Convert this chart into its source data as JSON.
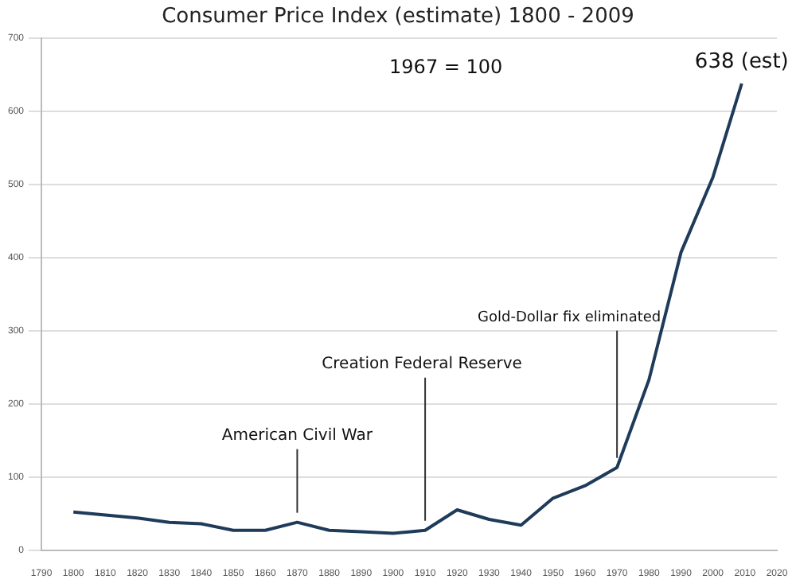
{
  "chart_data": {
    "type": "line",
    "title": "Consumer Price Index (estimate) 1800 - 2009",
    "x": [
      1800,
      1810,
      1820,
      1830,
      1840,
      1850,
      1860,
      1870,
      1880,
      1890,
      1900,
      1910,
      1920,
      1930,
      1940,
      1950,
      1960,
      1970,
      1980,
      1990,
      2000,
      2009
    ],
    "series": [
      {
        "color": "#1f3b5a",
        "values": [
          52,
          48,
          44,
          38,
          36,
          27,
          27,
          38,
          27,
          25,
          23,
          27,
          55,
          42,
          34,
          71,
          88,
          113,
          233,
          407,
          510,
          638
        ]
      }
    ],
    "xlim": [
      1790,
      2020
    ],
    "xticks": [
      1790,
      1800,
      1810,
      1820,
      1830,
      1840,
      1850,
      1860,
      1870,
      1880,
      1890,
      1900,
      1910,
      1920,
      1930,
      1940,
      1950,
      1960,
      1970,
      1980,
      1990,
      2000,
      2010,
      2020
    ],
    "ylim": [
      0,
      700
    ],
    "yticks": [
      0,
      100,
      200,
      300,
      400,
      500,
      600,
      700
    ],
    "grid": "y",
    "legend": false,
    "marker": "none",
    "line_style": "solid",
    "annotations": [
      "1967 = 100",
      {
        "text": "American Civil War",
        "x": 1870,
        "y": 38
      },
      {
        "text": "Creation Federal Reserve",
        "x": 1910,
        "y": 27
      },
      {
        "text": "Gold-Dollar fix eliminated",
        "x": 1970,
        "y": 113
      },
      {
        "text": "638 (est)",
        "x": 2009,
        "y": 638
      }
    ]
  }
}
